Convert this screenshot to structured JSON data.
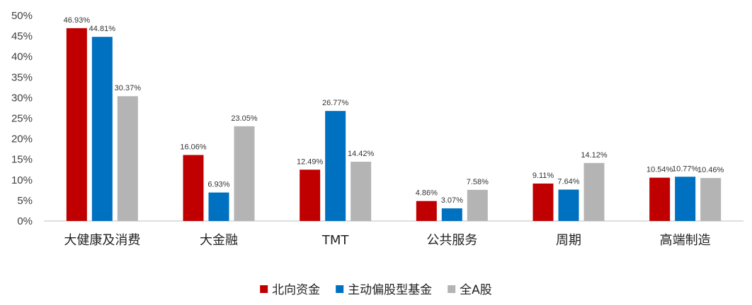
{
  "chart_data": {
    "type": "bar",
    "categories": [
      "大健康及消费",
      "大金融",
      "TMT",
      "公共服务",
      "周期",
      "高端制造"
    ],
    "series": [
      {
        "name": "北向资金",
        "color": "#C00000",
        "values": [
          46.93,
          16.06,
          12.49,
          4.86,
          9.11,
          10.54
        ]
      },
      {
        "name": "主动偏股型基金",
        "color": "#0070C0",
        "values": [
          44.81,
          6.93,
          26.77,
          3.07,
          7.64,
          10.77
        ]
      },
      {
        "name": "全A股",
        "color": "#B4B4B4",
        "values": [
          30.37,
          23.05,
          14.42,
          7.58,
          14.12,
          10.46
        ]
      }
    ],
    "ylim": [
      0,
      50
    ],
    "yticks": [
      0,
      5,
      10,
      15,
      20,
      25,
      30,
      35,
      40,
      45,
      50
    ],
    "ytick_labels": [
      "0%",
      "5%",
      "10%",
      "15%",
      "20%",
      "25%",
      "30%",
      "35%",
      "40%",
      "45%",
      "50%"
    ],
    "value_labels": [
      [
        "46.93%",
        "16.06%",
        "12.49%",
        "4.86%",
        "9.11%",
        "10.54%"
      ],
      [
        "44.81%",
        "6.93%",
        "26.77%",
        "3.07%",
        "7.64%",
        "10.77%"
      ],
      [
        "30.37%",
        "23.05%",
        "14.42%",
        "7.58%",
        "14.12%",
        "10.46%"
      ]
    ],
    "grid": false,
    "legend": "bottom-center"
  }
}
